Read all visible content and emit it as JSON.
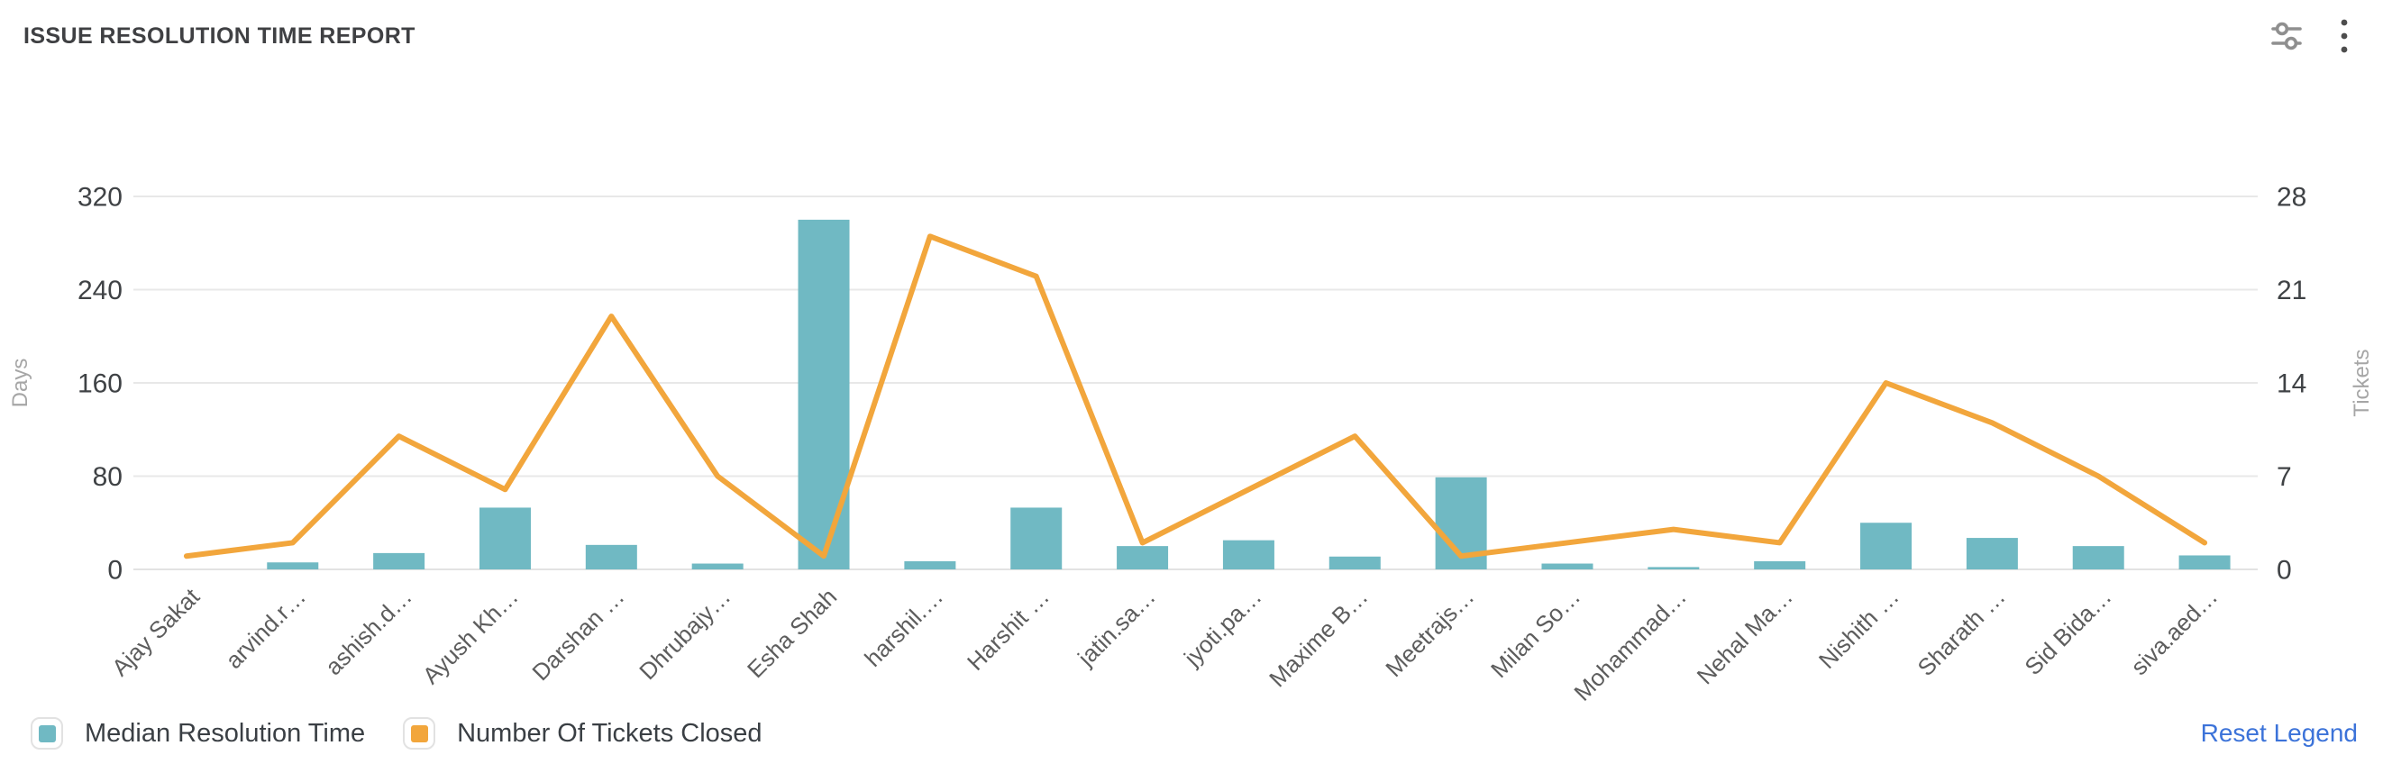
{
  "header": {
    "title": "ISSUE RESOLUTION TIME REPORT"
  },
  "toolbar": {
    "icons": [
      {
        "name": "filter-sliders-icon",
        "color": "#8f8f8f"
      },
      {
        "name": "kebab-menu-icon",
        "color": "#4d4d4d"
      }
    ]
  },
  "chart_data": {
    "type": "bar",
    "subtype": "combo-bar-line-dual-axis",
    "categories": [
      "Ajay Sakat",
      "arvind.r…",
      "ashish.d…",
      "Ayush Kh…",
      "Darshan …",
      "Dhrubajy…",
      "Esha Shah",
      "harshil.…",
      "Harshit …",
      "jatin.sa…",
      "jyoti.pa…",
      "Maxime B…",
      "Meetrajs…",
      "Milan So…",
      "Mohammad…",
      "Nehal Ma…",
      "Nishith …",
      "Sharath …",
      "Sid Bida…",
      "siva.aed…"
    ],
    "series": [
      {
        "name": "Median Resolution Time",
        "type": "bar",
        "axis": "left",
        "color": "#70b9c3",
        "values": [
          0,
          6,
          14,
          53,
          21,
          5,
          300,
          7,
          53,
          20,
          25,
          11,
          79,
          5,
          2,
          7,
          40,
          27,
          20,
          12
        ]
      },
      {
        "name": "Number Of Tickets Closed",
        "type": "line",
        "axis": "right",
        "color": "#f2a63c",
        "values": [
          1,
          2,
          10,
          6,
          19,
          7,
          1,
          25,
          22,
          2,
          6,
          10,
          1,
          2,
          3,
          2,
          14,
          11,
          7,
          2
        ]
      }
    ],
    "left_axis": {
      "label": "Days",
      "ticks": [
        0,
        80,
        160,
        240,
        320
      ],
      "max": 320
    },
    "right_axis": {
      "label": "Tickets",
      "ticks": [
        0,
        7,
        14,
        21,
        28
      ],
      "max": 28
    },
    "grid": true,
    "legend_position": "bottom-left",
    "title": "ISSUE RESOLUTION TIME REPORT"
  },
  "legend": {
    "items": [
      {
        "label": "Median Resolution Time",
        "color": "#70b9c3"
      },
      {
        "label": "Number Of Tickets Closed",
        "color": "#f2a63c"
      }
    ],
    "reset_label": "Reset Legend"
  },
  "colors": {
    "bar": "#70b9c3",
    "line": "#f2a63c",
    "grid": "#e8e8e8",
    "axis_line": "#e2e2e2",
    "tick_label": "#3f4245",
    "axis_name": "#a6a6a6",
    "category_label": "#5d5d5d",
    "link": "#3c73d9"
  }
}
